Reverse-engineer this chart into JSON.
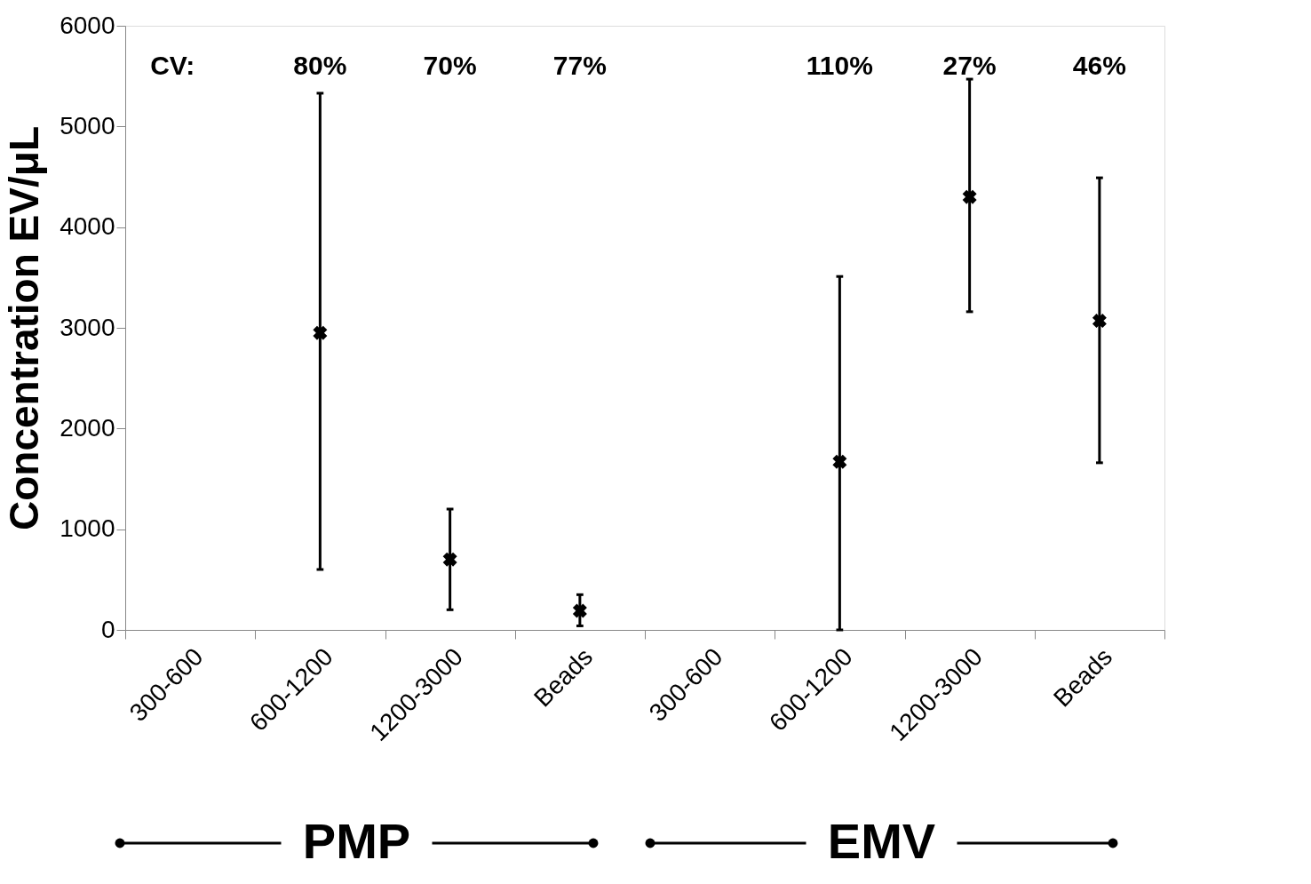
{
  "chart_data": {
    "type": "scatter",
    "ylabel": "Concentration EV/μL",
    "categories": [
      "300-600",
      "600-1200",
      "1200-3000",
      "Beads",
      "300-600",
      "600-1200",
      "1200-3000",
      "Beads"
    ],
    "values": [
      null,
      2950,
      700,
      190,
      null,
      1670,
      4300,
      3070
    ],
    "errors": [
      null,
      [
        600,
        5330
      ],
      [
        200,
        1200
      ],
      [
        40,
        350
      ],
      null,
      [
        0,
        3510
      ],
      [
        3160,
        5470
      ],
      [
        1660,
        4490
      ]
    ],
    "color": "#000000",
    "marker": "cross",
    "ylim": [
      0,
      6000
    ],
    "yticks": [
      0,
      1000,
      2000,
      3000,
      4000,
      5000,
      6000
    ],
    "grid": false,
    "annotations": [
      "CV:",
      "80%",
      "70%",
      "77%",
      "110%",
      "27%",
      "46%",
      "PMP",
      "EMV"
    ]
  }
}
